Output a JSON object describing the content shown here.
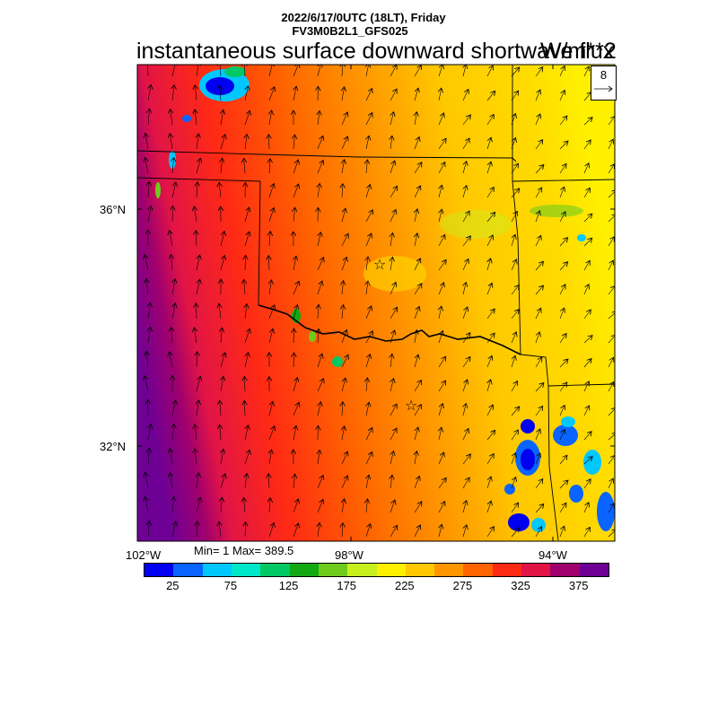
{
  "header": {
    "date_line": "2022/6/17/0UTC (18LT), Friday",
    "model_line": "FV3M0B2L1_GFS025",
    "title": "instantaneous surface downward shortwave flux",
    "units": "W/m**2"
  },
  "vector_ref": {
    "value": "8"
  },
  "axes": {
    "lat_labels": [
      "36°N",
      "32°N"
    ],
    "lon_labels": [
      "102°W",
      "98°W",
      "94°W"
    ]
  },
  "stats": {
    "text": "Min= 1 Max= 389.5"
  },
  "colorbar": {
    "colors": [
      "#0000f0",
      "#0a64ff",
      "#00c8ff",
      "#00e6c8",
      "#00c864",
      "#12a912",
      "#6ecb1c",
      "#c8f01e",
      "#fff000",
      "#ffc800",
      "#ff9600",
      "#ff6400",
      "#ff2a14",
      "#e11446",
      "#a0006e",
      "#6e0096"
    ],
    "labels": [
      "25",
      "75",
      "125",
      "175",
      "225",
      "275",
      "325",
      "375"
    ]
  },
  "markers": {
    "star_symbol": "☆"
  }
}
